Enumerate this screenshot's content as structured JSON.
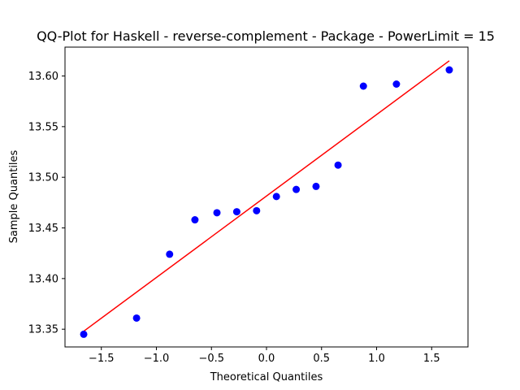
{
  "chart_data": {
    "type": "scatter",
    "title": "QQ-Plot for Haskell - reverse-complement - Package - PowerLimit = 15",
    "xlabel": "Theoretical Quantiles",
    "ylabel": "Sample Quantiles",
    "xlim": [
      -1.83,
      1.83
    ],
    "ylim": [
      13.3325,
      13.6285
    ],
    "xticks": [
      -1.5,
      -1.0,
      -0.5,
      0.0,
      0.5,
      1.0,
      1.5
    ],
    "xtick_labels": [
      "−1.5",
      "−1.0",
      "−0.5",
      "0.0",
      "0.5",
      "1.0",
      "1.5"
    ],
    "yticks": [
      13.35,
      13.4,
      13.45,
      13.5,
      13.55,
      13.6
    ],
    "ytick_labels": [
      "13.35",
      "13.40",
      "13.45",
      "13.50",
      "13.55",
      "13.60"
    ],
    "grid": false,
    "series": [
      {
        "kind": "points",
        "color": "#0000ff",
        "x": [
          -1.66,
          -1.18,
          -0.88,
          -0.65,
          -0.45,
          -0.27,
          -0.09,
          0.09,
          0.27,
          0.45,
          0.65,
          0.88,
          1.18,
          1.66
        ],
        "y": [
          13.345,
          13.361,
          13.424,
          13.458,
          13.465,
          13.466,
          13.467,
          13.481,
          13.488,
          13.491,
          13.512,
          13.59,
          13.592,
          13.606
        ]
      },
      {
        "kind": "line",
        "color": "#ff0000",
        "x": [
          -1.66,
          1.66
        ],
        "y": [
          13.348,
          13.615
        ]
      }
    ]
  }
}
